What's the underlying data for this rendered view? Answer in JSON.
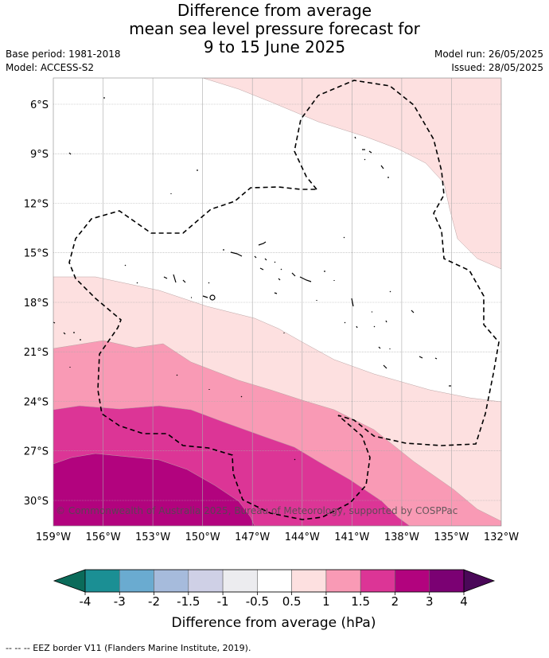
{
  "title": {
    "line1": "Difference from average",
    "line2": "mean sea level pressure forecast for",
    "line3": "9 to 15 June 2025"
  },
  "meta": {
    "base_period": "Base period: 1981-2018",
    "model": "Model: ACCESS-S2",
    "model_run": "Model run: 26/05/2025",
    "issued": "Issued: 28/05/2025"
  },
  "map": {
    "lon_labels": [
      "159°W",
      "156°W",
      "153°W",
      "150°W",
      "147°W",
      "144°W",
      "141°W",
      "138°W",
      "135°W",
      "132°W"
    ],
    "lat_labels": [
      "6°S",
      "9°S",
      "12°S",
      "15°S",
      "18°S",
      "21°S",
      "24°S",
      "27°S",
      "30°S"
    ],
    "copyright": "© Commonwealth of Australia 2025, Bureau of Meteorology, supported by COSPPac"
  },
  "colorbar": {
    "tick_labels": [
      "-4",
      "-3",
      "-2",
      "-1.5",
      "-1",
      "-0.5",
      "0.5",
      "1",
      "1.5",
      "2",
      "3",
      "4"
    ],
    "colors": [
      "#1b8f94",
      "#6aabd0",
      "#a6bbdc",
      "#cfd0e6",
      "#ececef",
      "#ffffff",
      "#fde0e0",
      "#f99ab5",
      "#dc3596",
      "#b2037e",
      "#7b0173"
    ],
    "under_color": "#0b6b5a",
    "over_color": "#4a0858",
    "label": "Difference from average (hPa)"
  },
  "footer": "--  --  -- EEZ border V11 (Flanders Marine Institute, 2019)."
}
